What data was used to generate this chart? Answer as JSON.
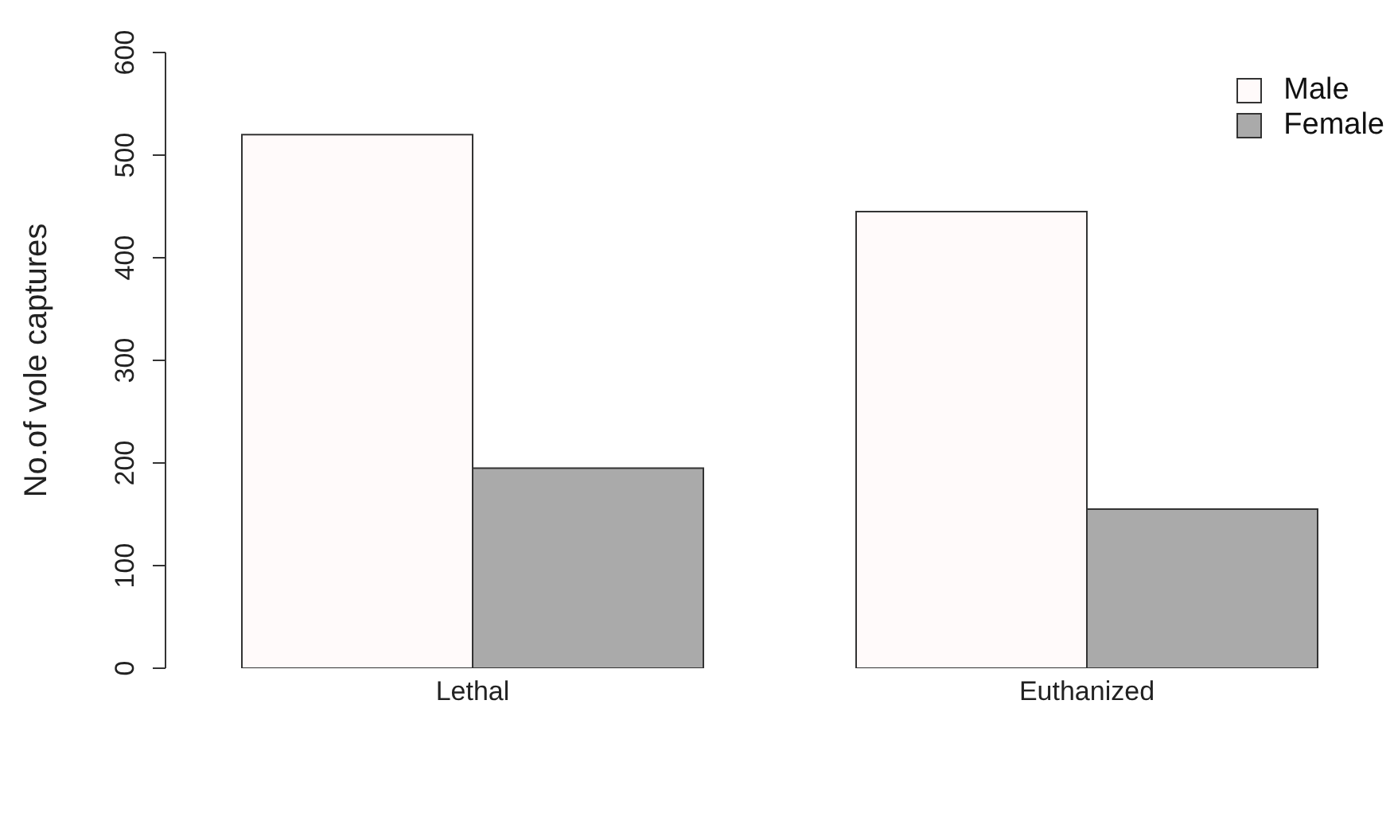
{
  "chart_data": {
    "type": "bar",
    "ylabel": "No.of vole captures",
    "categories": [
      "Lethal",
      "Euthanized"
    ],
    "series": [
      {
        "name": "Male",
        "color": "#fffafa",
        "values": [
          520,
          445
        ]
      },
      {
        "name": "Female",
        "color": "#aaaaaa",
        "values": [
          195,
          155
        ]
      }
    ],
    "ylim": [
      0,
      600
    ],
    "yticks": [
      0,
      100,
      200,
      300,
      400,
      500,
      600
    ],
    "legend": "top right",
    "grid": false
  }
}
